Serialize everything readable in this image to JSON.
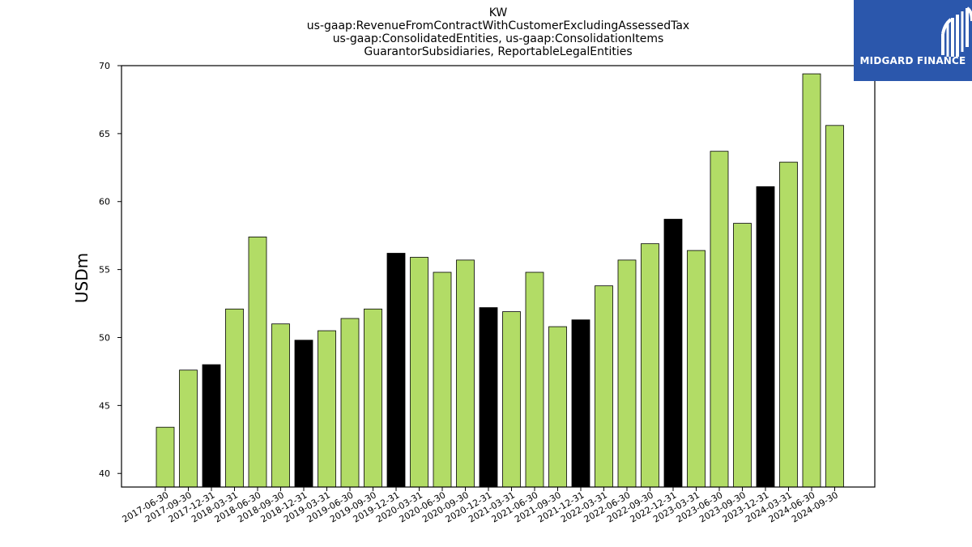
{
  "header": {
    "ticker": "KW",
    "line2": "us-gaap:RevenueFromContractWithCustomerExcludingAssessedTax",
    "line3": "us-gaap:ConsolidatedEntities, us-gaap:ConsolidationItems",
    "line4": "GuarantorSubsidiaries, ReportableLegalEntities"
  },
  "logo": {
    "name": "MIDGARD FINANCE",
    "background": "#2b57ac"
  },
  "colors": {
    "quarter_bar": "#b2dc66",
    "year_end_bar": "#000000",
    "bar_edge": "#000000"
  },
  "chart_data": {
    "type": "bar",
    "title": "KW",
    "xlabel": "",
    "ylabel": "USDm",
    "ylim": [
      39,
      70
    ],
    "yticks": [
      40,
      45,
      50,
      55,
      60,
      65,
      70
    ],
    "grid": false,
    "categories": [
      "2017-06-30",
      "2017-09-30",
      "2017-12-31",
      "2018-03-31",
      "2018-06-30",
      "2018-09-30",
      "2018-12-31",
      "2019-03-31",
      "2019-06-30",
      "2019-09-30",
      "2019-12-31",
      "2020-03-31",
      "2020-06-30",
      "2020-09-30",
      "2020-12-31",
      "2021-03-31",
      "2021-06-30",
      "2021-09-30",
      "2021-12-31",
      "2022-03-31",
      "2022-06-30",
      "2022-09-30",
      "2022-12-31",
      "2023-03-31",
      "2023-06-30",
      "2023-09-30",
      "2023-12-31",
      "2024-03-31",
      "2024-06-30",
      "2024-09-30"
    ],
    "values": [
      43.4,
      47.6,
      48.0,
      52.1,
      57.4,
      51.0,
      49.8,
      50.5,
      51.4,
      52.1,
      56.2,
      55.9,
      54.8,
      55.7,
      52.2,
      51.9,
      54.8,
      50.8,
      51.3,
      53.8,
      55.7,
      56.9,
      58.7,
      56.4,
      63.7,
      58.4,
      61.1,
      62.9,
      69.4,
      65.6
    ],
    "year_end": [
      false,
      false,
      true,
      false,
      false,
      false,
      true,
      false,
      false,
      false,
      true,
      false,
      false,
      false,
      true,
      false,
      false,
      false,
      true,
      false,
      false,
      false,
      true,
      false,
      false,
      false,
      true,
      false,
      false,
      false
    ]
  }
}
